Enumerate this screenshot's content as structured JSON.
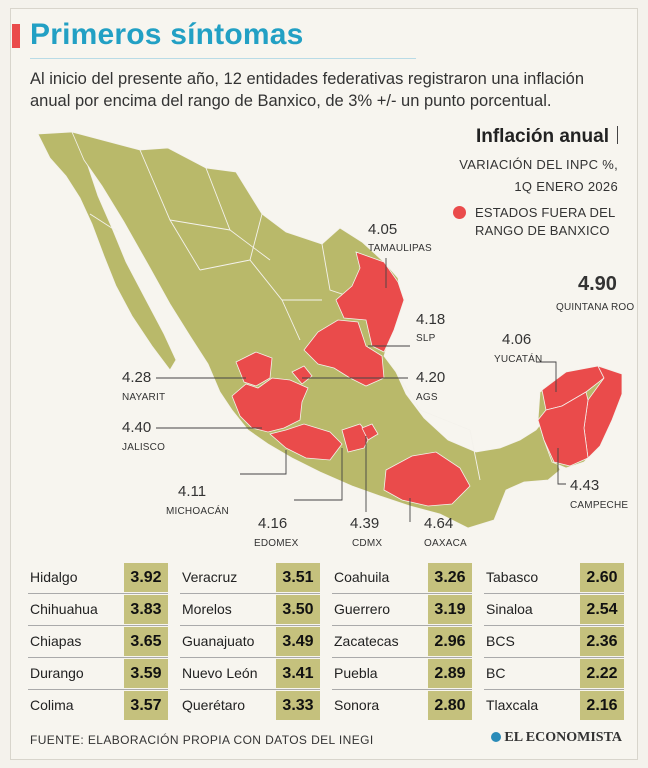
{
  "header": {
    "title": "Primeros síntomas",
    "subtitle": "Al inicio del presente año, 12 entidades federativas registraron una inflación anual por encima del rango de Banxico, de 3% +/- un punto porcentual."
  },
  "legend": {
    "title": "Inflación anual",
    "sub_line1": "VARIACIÓN DEL INPC %,",
    "sub_line2": "1Q ENERO 2026",
    "key_line1": "ESTADOS FUERA DEL",
    "key_line2": "RANGO DE BANXICO"
  },
  "colors": {
    "accent": "#22a0c4",
    "highlight": "#ea4b4b",
    "land": "#b9b96a",
    "value_box": "#c5c17d"
  },
  "chart_data": {
    "type": "table",
    "title": "Inflación anual",
    "subtitle": "VARIACIÓN DEL INPC %, 1Q ENERO 2026",
    "map_labels": [
      {
        "state": "TAMAULIPAS",
        "value": "4.05"
      },
      {
        "state": "SLP",
        "value": "4.18"
      },
      {
        "state": "AGS",
        "value": "4.20"
      },
      {
        "state": "NAYARIT",
        "value": "4.28"
      },
      {
        "state": "JALISCO",
        "value": "4.40"
      },
      {
        "state": "MICHOACÁN",
        "value": "4.11"
      },
      {
        "state": "EDOMEX",
        "value": "4.16"
      },
      {
        "state": "CDMX",
        "value": "4.39"
      },
      {
        "state": "OAXACA",
        "value": "4.64"
      },
      {
        "state": "YUCATÁN",
        "value": "4.06"
      },
      {
        "state": "QUINTANA ROO",
        "value": "4.90"
      },
      {
        "state": "CAMPECHE",
        "value": "4.43"
      }
    ],
    "table_columns": [
      [
        {
          "state": "Hidalgo",
          "value": "3.92"
        },
        {
          "state": "Chihuahua",
          "value": "3.83"
        },
        {
          "state": "Chiapas",
          "value": "3.65"
        },
        {
          "state": "Durango",
          "value": "3.59"
        },
        {
          "state": "Colima",
          "value": "3.57"
        }
      ],
      [
        {
          "state": "Veracruz",
          "value": "3.51"
        },
        {
          "state": "Morelos",
          "value": "3.50"
        },
        {
          "state": "Guanajuato",
          "value": "3.49"
        },
        {
          "state": "Nuevo León",
          "value": "3.41"
        },
        {
          "state": "Querétaro",
          "value": "3.33"
        }
      ],
      [
        {
          "state": "Coahuila",
          "value": "3.26"
        },
        {
          "state": "Guerrero",
          "value": "3.19"
        },
        {
          "state": "Zacatecas",
          "value": "2.96"
        },
        {
          "state": "Puebla",
          "value": "2.89"
        },
        {
          "state": "Sonora",
          "value": "2.80"
        }
      ],
      [
        {
          "state": "Tabasco",
          "value": "2.60"
        },
        {
          "state": "Sinaloa",
          "value": "2.54"
        },
        {
          "state": "BCS",
          "value": "2.36"
        },
        {
          "state": "BC",
          "value": "2.22"
        },
        {
          "state": "Tlaxcala",
          "value": "2.16"
        }
      ]
    ]
  },
  "footer": {
    "source": "FUENTE: ELABORACIÓN PROPIA CON DATOS DEL INEGI",
    "brand": "EL ECONOMISTA"
  }
}
